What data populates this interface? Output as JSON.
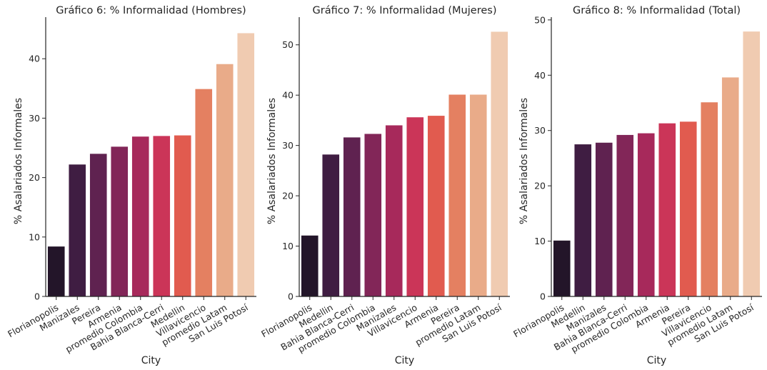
{
  "chart_data": [
    {
      "type": "bar",
      "title": "Gráfico 6: % Informalidad (Hombres)",
      "xlabel": "City",
      "ylabel": "% Asalariados Informales",
      "ylim": [
        0,
        47
      ],
      "yticks": [
        0,
        10,
        20,
        30,
        40
      ],
      "categories": [
        "Florianopolis",
        "Manizales",
        "Pereira",
        "Armenia",
        "promedio Colombia",
        "Bahia Blanca-Cerri",
        "Medellin",
        "Villavicencio",
        "promedio Latam",
        "San Luis Potosí"
      ],
      "values": [
        8.4,
        22.2,
        24.0,
        25.2,
        26.9,
        27.0,
        27.1,
        34.9,
        39.1,
        44.3
      ],
      "grid": false
    },
    {
      "type": "bar",
      "title": "Gráfico 7: % Informalidad (Mujeres)",
      "xlabel": "City",
      "ylabel": "% Asalariados Informales",
      "ylim": [
        0,
        55.5
      ],
      "yticks": [
        0,
        10,
        20,
        30,
        40,
        50
      ],
      "categories": [
        "Florianopolis",
        "Medellin",
        "Bahia Blanca-Cerri",
        "promedio Colombia",
        "Manizales",
        "Villavicencio",
        "Armenia",
        "Pereira",
        "promedio Latam",
        "San Luis Potosí"
      ],
      "values": [
        12.1,
        28.2,
        31.6,
        32.3,
        34.0,
        35.6,
        35.9,
        40.1,
        40.1,
        52.6
      ],
      "grid": false
    },
    {
      "type": "bar",
      "title": "Gráfico 8: % Informalidad (Total)",
      "xlabel": "City",
      "ylabel": "% Asalariados Informales",
      "ylim": [
        0,
        50.5
      ],
      "yticks": [
        0,
        10,
        20,
        30,
        40,
        50
      ],
      "categories": [
        "Florianopolis",
        "Medellin",
        "Manizales",
        "Bahia Blanca-Cerri",
        "promedio Colombia",
        "Armenia",
        "Pereira",
        "Villavicencio",
        "promedio Latam",
        "San Luis Potosí"
      ],
      "values": [
        10.1,
        27.5,
        27.8,
        29.2,
        29.5,
        31.3,
        31.6,
        35.1,
        39.6,
        47.9
      ],
      "grid": false
    }
  ],
  "palette": [
    "#231529",
    "#3f1d42",
    "#5f2250",
    "#822658",
    "#a7295b",
    "#cb3558",
    "#e15b4f",
    "#e48061",
    "#e9ab89",
    "#f0cbb1"
  ]
}
